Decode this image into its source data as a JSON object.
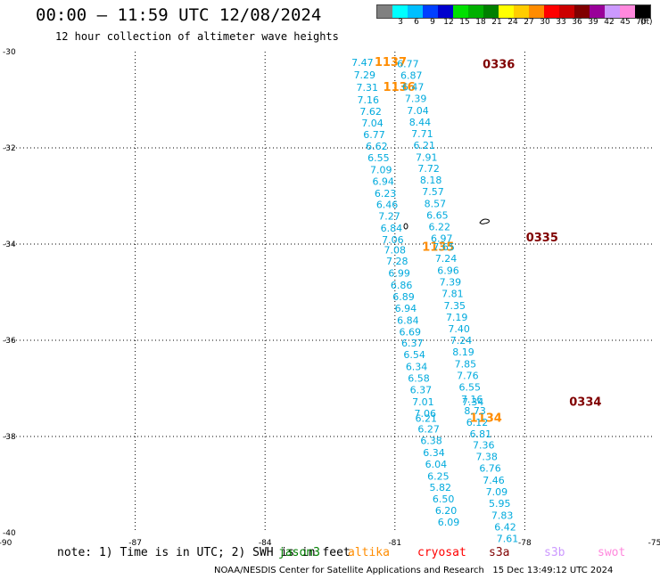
{
  "header": {
    "title": "00:00 – 11:59 UTC 12/08/2024",
    "subtitle": "12 hour collection of altimeter wave heights"
  },
  "legend": {
    "unit": "(ft)",
    "scale": [
      {
        "label": "",
        "color": "#808080"
      },
      {
        "label": "3",
        "color": "#00ffff"
      },
      {
        "label": "6",
        "color": "#00bfff"
      },
      {
        "label": "9",
        "color": "#0040ff"
      },
      {
        "label": "12",
        "color": "#0000cd"
      },
      {
        "label": "15",
        "color": "#00e000"
      },
      {
        "label": "18",
        "color": "#00b000"
      },
      {
        "label": "21",
        "color": "#008000"
      },
      {
        "label": "24",
        "color": "#ffff00"
      },
      {
        "label": "27",
        "color": "#ffcc00"
      },
      {
        "label": "30",
        "color": "#ff8c00"
      },
      {
        "label": "33",
        "color": "#ff0000"
      },
      {
        "label": "36",
        "color": "#cc0000"
      },
      {
        "label": "39",
        "color": "#800000"
      },
      {
        "label": "42",
        "color": "#990099"
      },
      {
        "label": "45",
        "color": "#cc99ff"
      },
      {
        "label": "70",
        "color": "#ff88dd"
      },
      {
        "label": "",
        "color": "#000000"
      }
    ]
  },
  "map": {
    "lon_ticks": [
      "-90",
      "-87",
      "-84",
      "-81",
      "-78",
      "-75"
    ],
    "lat_ticks": [
      "-30",
      "-32",
      "-34",
      "-36",
      "-38",
      "-40"
    ],
    "lon_range": [
      -90,
      -75
    ],
    "lat_range": [
      -40,
      -30
    ]
  },
  "tracks": [
    {
      "pass_label": "1137",
      "pass_color": "#ff8c00",
      "label_pos": {
        "lon": -81.1,
        "lat": -30.2
      },
      "points": [
        {
          "lon": -81.75,
          "lat": -30.22,
          "v": "7.47"
        },
        {
          "lon": -81.7,
          "lat": -30.48,
          "v": "7.29"
        }
      ]
    },
    {
      "pass_label": "1136",
      "pass_color": "#ff8c00",
      "label_pos": {
        "lon": -80.9,
        "lat": -30.72
      },
      "points": [
        {
          "lon": -81.64,
          "lat": -30.74,
          "v": "7.31"
        },
        {
          "lon": -81.62,
          "lat": -31.0,
          "v": "7.16"
        },
        {
          "lon": -81.56,
          "lat": -31.24,
          "v": "7.62"
        },
        {
          "lon": -81.52,
          "lat": -31.48,
          "v": "7.04"
        },
        {
          "lon": -81.48,
          "lat": -31.72,
          "v": "6.77"
        },
        {
          "lon": -81.42,
          "lat": -31.96,
          "v": "6.62"
        },
        {
          "lon": -81.38,
          "lat": -32.2,
          "v": "6.55"
        },
        {
          "lon": -81.32,
          "lat": -32.45,
          "v": "7.09"
        },
        {
          "lon": -81.27,
          "lat": -32.69,
          "v": "6.94"
        },
        {
          "lon": -81.22,
          "lat": -32.94,
          "v": "6.23"
        },
        {
          "lon": -81.18,
          "lat": -33.18,
          "v": "6.46"
        },
        {
          "lon": -81.13,
          "lat": -33.42,
          "v": "7.27"
        },
        {
          "lon": -81.08,
          "lat": -33.67,
          "v": "6.84"
        },
        {
          "lon": -81.05,
          "lat": -33.91,
          "v": "7.06"
        }
      ]
    },
    {
      "pass_label": "1135",
      "pass_color": "#ff8c00",
      "label_pos": {
        "lon": -80.0,
        "lat": -34.05
      },
      "points": [
        {
          "lon": -81.0,
          "lat": -34.12,
          "v": "7.08"
        },
        {
          "lon": -80.95,
          "lat": -34.35,
          "v": "7.28"
        },
        {
          "lon": -80.9,
          "lat": -34.6,
          "v": "6.99"
        },
        {
          "lon": -80.85,
          "lat": -34.85,
          "v": "6.86"
        },
        {
          "lon": -80.8,
          "lat": -35.09,
          "v": "6.89"
        },
        {
          "lon": -80.75,
          "lat": -35.33,
          "v": "6.94"
        },
        {
          "lon": -80.7,
          "lat": -35.58,
          "v": "6.84"
        },
        {
          "lon": -80.65,
          "lat": -35.82,
          "v": "6.69"
        },
        {
          "lon": -80.6,
          "lat": -36.06,
          "v": "6.37"
        },
        {
          "lon": -80.55,
          "lat": -36.3,
          "v": "6.54"
        },
        {
          "lon": -80.5,
          "lat": -36.55,
          "v": "6.34"
        },
        {
          "lon": -80.45,
          "lat": -36.79,
          "v": "6.58"
        },
        {
          "lon": -80.4,
          "lat": -37.03,
          "v": "6.37"
        },
        {
          "lon": -80.35,
          "lat": -37.28,
          "v": "7.01"
        },
        {
          "lon": -80.3,
          "lat": -37.52,
          "v": "7.06"
        }
      ]
    },
    {
      "pass_label": "1134",
      "pass_color": "#ff8c00",
      "label_pos": {
        "lon": -78.9,
        "lat": -37.6
      },
      "points": [
        {
          "lon": -80.28,
          "lat": -37.62,
          "v": "6.21"
        },
        {
          "lon": -80.22,
          "lat": -37.84,
          "v": "6.27"
        },
        {
          "lon": -80.16,
          "lat": -38.08,
          "v": "6.38"
        },
        {
          "lon": -80.1,
          "lat": -38.33,
          "v": "6.34"
        },
        {
          "lon": -80.05,
          "lat": -38.57,
          "v": "6.04"
        },
        {
          "lon": -80.0,
          "lat": -38.82,
          "v": "6.25"
        },
        {
          "lon": -79.95,
          "lat": -39.06,
          "v": "5.82"
        },
        {
          "lon": -79.88,
          "lat": -39.3,
          "v": "6.50"
        },
        {
          "lon": -79.82,
          "lat": -39.54,
          "v": "6.20"
        },
        {
          "lon": -79.76,
          "lat": -39.78,
          "v": "6.09"
        }
      ]
    },
    {
      "pass_label": "0336",
      "pass_color": "#800000",
      "label_pos": {
        "lon": -78.6,
        "lat": -30.25
      },
      "points": [
        {
          "lon": -80.7,
          "lat": -30.25,
          "v": "6.77"
        },
        {
          "lon": -80.62,
          "lat": -30.49,
          "v": "6.87"
        },
        {
          "lon": -80.58,
          "lat": -30.73,
          "v": "6.47"
        },
        {
          "lon": -80.52,
          "lat": -30.97,
          "v": "7.39"
        },
        {
          "lon": -80.47,
          "lat": -31.22,
          "v": "7.04"
        },
        {
          "lon": -80.42,
          "lat": -31.46,
          "v": "8.44"
        },
        {
          "lon": -80.37,
          "lat": -31.7,
          "v": "7.71"
        },
        {
          "lon": -80.32,
          "lat": -31.94,
          "v": "6.21"
        },
        {
          "lon": -80.27,
          "lat": -32.19,
          "v": "7.91"
        },
        {
          "lon": -80.22,
          "lat": -32.43,
          "v": "7.72"
        },
        {
          "lon": -80.17,
          "lat": -32.67,
          "v": "8.18"
        },
        {
          "lon": -80.12,
          "lat": -32.91,
          "v": "7.57"
        },
        {
          "lon": -80.07,
          "lat": -33.16,
          "v": "8.57"
        },
        {
          "lon": -80.02,
          "lat": -33.4,
          "v": "6.65"
        },
        {
          "lon": -79.97,
          "lat": -33.64,
          "v": "6.22"
        }
      ]
    },
    {
      "pass_label": "0335",
      "pass_color": "#800000",
      "label_pos": {
        "lon": -77.6,
        "lat": -33.85
      },
      "points": [
        {
          "lon": -79.92,
          "lat": -33.88,
          "v": "6.97"
        },
        {
          "lon": -79.87,
          "lat": -34.06,
          "v": "7.65"
        },
        {
          "lon": -79.82,
          "lat": -34.3,
          "v": "7.24"
        },
        {
          "lon": -79.77,
          "lat": -34.55,
          "v": "6.96"
        },
        {
          "lon": -79.72,
          "lat": -34.79,
          "v": "7.39"
        },
        {
          "lon": -79.67,
          "lat": -35.03,
          "v": "7.81"
        },
        {
          "lon": -79.62,
          "lat": -35.28,
          "v": "7.35"
        },
        {
          "lon": -79.57,
          "lat": -35.52,
          "v": "7.19"
        },
        {
          "lon": -79.52,
          "lat": -35.76,
          "v": "7.40"
        },
        {
          "lon": -79.47,
          "lat": -36.0,
          "v": "7.24"
        },
        {
          "lon": -79.42,
          "lat": -36.24,
          "v": "8.19"
        },
        {
          "lon": -79.37,
          "lat": -36.49,
          "v": "7.85"
        },
        {
          "lon": -79.32,
          "lat": -36.73,
          "v": "7.76"
        },
        {
          "lon": -79.27,
          "lat": -36.97,
          "v": "6.55"
        },
        {
          "lon": -79.22,
          "lat": -37.22,
          "v": "7.16"
        }
      ]
    },
    {
      "pass_label": "0334",
      "pass_color": "#800000",
      "label_pos": {
        "lon": -76.6,
        "lat": -37.27
      },
      "points": [
        {
          "lon": -79.2,
          "lat": -37.28,
          "v": "7.34"
        },
        {
          "lon": -79.15,
          "lat": -37.46,
          "v": "8.73"
        },
        {
          "lon": -79.1,
          "lat": -37.7,
          "v": "6.12"
        },
        {
          "lon": -79.02,
          "lat": -37.94,
          "v": "6.81"
        },
        {
          "lon": -78.95,
          "lat": -38.18,
          "v": "7.36"
        },
        {
          "lon": -78.88,
          "lat": -38.42,
          "v": "7.38"
        },
        {
          "lon": -78.8,
          "lat": -38.66,
          "v": "6.76"
        },
        {
          "lon": -78.72,
          "lat": -38.91,
          "v": "7.46"
        },
        {
          "lon": -78.65,
          "lat": -39.15,
          "v": "7.09"
        },
        {
          "lon": -78.58,
          "lat": -39.39,
          "v": "5.95"
        },
        {
          "lon": -78.52,
          "lat": -39.64,
          "v": "7.83"
        },
        {
          "lon": -78.45,
          "lat": -39.88,
          "v": "6.42"
        },
        {
          "lon": -78.4,
          "lat": -40.12,
          "v": "7.61"
        }
      ]
    }
  ],
  "footer": {
    "note": "note: 1) Time is in UTC; 2) SWH is in feet",
    "satellites": [
      {
        "name": "jason3",
        "color": "#008000"
      },
      {
        "name": "altika",
        "color": "#ff8c00"
      },
      {
        "name": "cryosat",
        "color": "#ff0000"
      },
      {
        "name": "s3a",
        "color": "#800000"
      },
      {
        "name": "s3b",
        "color": "#cc99ff"
      },
      {
        "name": "swot",
        "color": "#ff88dd"
      }
    ],
    "credit": "NOAA/NESDIS Center for Satellite Applications and Research",
    "timestamp": "15 Dec 13:49:12 UTC 2024"
  },
  "value_color": "#00aadd"
}
